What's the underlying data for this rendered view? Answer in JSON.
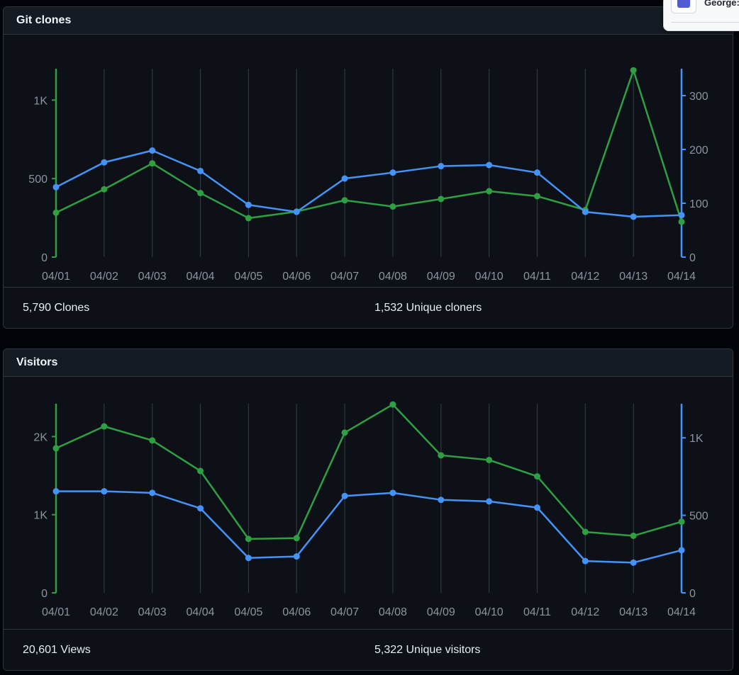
{
  "popup": {
    "text": "George:"
  },
  "clones": {
    "title": "Git clones",
    "summary_left": "5,790 Clones",
    "summary_right": "1,532 Unique cloners"
  },
  "visitors": {
    "title": "Visitors",
    "summary_left": "20,601 Views",
    "summary_right": "5,322 Unique visitors"
  },
  "colors": {
    "green": "#2ea043",
    "blue": "#4493f8",
    "grid": "#30363d",
    "tick_text": "#8b949e"
  },
  "chart_data": [
    {
      "type": "line",
      "x": [
        "04/01",
        "04/02",
        "04/03",
        "04/04",
        "04/05",
        "04/06",
        "04/07",
        "04/08",
        "04/09",
        "04/10",
        "04/11",
        "04/12",
        "04/13",
        "04/14"
      ],
      "series": [
        {
          "name": "Clones",
          "axis": "left",
          "color": "#2ea043",
          "values": [
            283,
            432,
            597,
            408,
            248,
            290,
            362,
            322,
            370,
            420,
            388,
            300,
            1190,
            225
          ]
        },
        {
          "name": "Unique cloners",
          "axis": "right",
          "color": "#4493f8",
          "values": [
            130,
            176,
            198,
            160,
            97,
            84,
            146,
            157,
            169,
            171,
            157,
            84,
            75,
            78
          ]
        }
      ],
      "left_axis": {
        "ylim": [
          0,
          1200
        ],
        "ticks": [
          0,
          500,
          1000
        ],
        "tick_labels": [
          "0",
          "500",
          "1K"
        ]
      },
      "right_axis": {
        "ylim": [
          0,
          350
        ],
        "ticks": [
          0,
          100,
          200,
          300
        ],
        "tick_labels": [
          "0",
          "100",
          "200",
          "300"
        ]
      },
      "grid": true
    },
    {
      "type": "line",
      "x": [
        "04/01",
        "04/02",
        "04/03",
        "04/04",
        "04/05",
        "04/06",
        "04/07",
        "04/08",
        "04/09",
        "04/10",
        "04/11",
        "04/12",
        "04/13",
        "04/14"
      ],
      "series": [
        {
          "name": "Views",
          "axis": "left",
          "color": "#2ea043",
          "values": [
            1850,
            2130,
            1950,
            1560,
            690,
            700,
            2050,
            2410,
            1760,
            1700,
            1490,
            780,
            730,
            910
          ]
        },
        {
          "name": "Unique visitors",
          "axis": "right",
          "color": "#4493f8",
          "values": [
            655,
            655,
            645,
            545,
            225,
            235,
            625,
            645,
            600,
            590,
            550,
            205,
            195,
            275
          ]
        }
      ],
      "left_axis": {
        "ylim": [
          0,
          2420
        ],
        "ticks": [
          0,
          1000,
          2000
        ],
        "tick_labels": [
          "0",
          "1K",
          "2K"
        ]
      },
      "right_axis": {
        "ylim": [
          0,
          1220
        ],
        "ticks": [
          0,
          500,
          1000
        ],
        "tick_labels": [
          "0",
          "500",
          "1K"
        ]
      },
      "grid": true
    }
  ]
}
